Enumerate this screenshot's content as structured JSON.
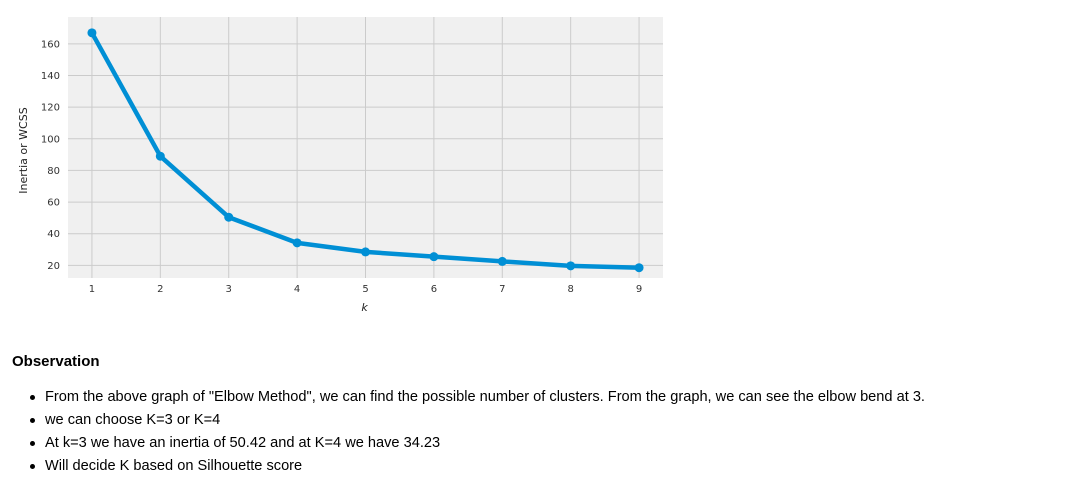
{
  "chart_data": {
    "type": "line",
    "title": "",
    "xlabel": "k",
    "ylabel": "Inertia or WCSS",
    "x": [
      1,
      2,
      3,
      4,
      5,
      6,
      7,
      8,
      9
    ],
    "y": [
      167.0,
      89.0,
      50.42,
      34.23,
      28.5,
      25.5,
      22.5,
      19.7,
      18.5
    ],
    "xlim": [
      0.65,
      9.35
    ],
    "ylim": [
      12,
      177
    ],
    "xticks": [
      1,
      2,
      3,
      4,
      5,
      6,
      7,
      8,
      9
    ],
    "yticks": [
      20,
      40,
      60,
      80,
      100,
      120,
      140,
      160
    ],
    "grid": true,
    "line_color": "#008fd5",
    "background_color": "#f0f0f0",
    "grid_color": "#cbcbcb"
  },
  "observation": {
    "title": "Observation",
    "items": [
      "From the above graph of \"Elbow Method\", we can find the possible number of clusters. From the graph, we can see the elbow bend at 3.",
      "we can choose K=3 or K=4",
      "At k=3 we have an inertia of 50.42 and at K=4 we have 34.23",
      "Will decide K based on Silhouette score"
    ]
  }
}
